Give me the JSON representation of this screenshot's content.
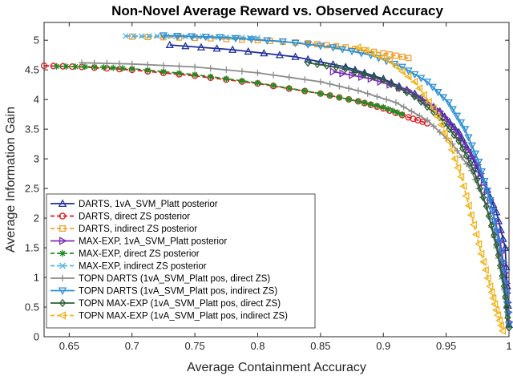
{
  "chart_data": {
    "type": "line",
    "title": "Non-Novel Average Reward vs. Observed Accuracy",
    "xlabel": "Average Containment Accuracy",
    "ylabel": "Average Information Gain",
    "xlim": [
      0.63,
      1.0
    ],
    "ylim": [
      0,
      5.3
    ],
    "xticks": [
      "0.65",
      "0.7",
      "0.75",
      "0.8",
      "0.85",
      "0.9",
      "0.95",
      "1"
    ],
    "yticks": [
      "0",
      "0.5",
      "1",
      "1.5",
      "2",
      "2.5",
      "3",
      "3.5",
      "4",
      "4.5",
      "5"
    ],
    "legend_position": "bottom-left",
    "series": [
      {
        "name": "DARTS, 1vA_SVM_Platt posterior",
        "color": "#1f2e9c",
        "marker": "triangle-up",
        "dash": "solid",
        "x": [
          0.73,
          0.78,
          0.83,
          0.87,
          0.9,
          0.925,
          0.945,
          0.96,
          0.97,
          0.98,
          0.99,
          0.997,
          1.0
        ],
        "y": [
          4.92,
          4.84,
          4.72,
          4.55,
          4.35,
          4.1,
          3.8,
          3.45,
          3.05,
          2.6,
          2.1,
          1.5,
          0.2
        ]
      },
      {
        "name": "DARTS, direct ZS posterior",
        "color": "#e0191b",
        "marker": "circle",
        "dash": "dashed",
        "x": [
          0.63,
          0.66,
          0.7,
          0.75,
          0.8,
          0.85,
          0.88,
          0.9,
          0.92,
          0.935
        ],
        "y": [
          4.57,
          4.55,
          4.5,
          4.4,
          4.27,
          4.1,
          3.97,
          3.85,
          3.7,
          3.6
        ]
      },
      {
        "name": "DARTS, indirect ZS posterior",
        "color": "#f0a030",
        "marker": "square",
        "dash": "dashed",
        "x": [
          0.7,
          0.75,
          0.8,
          0.84,
          0.87,
          0.9,
          0.92
        ],
        "y": [
          5.06,
          5.04,
          5.0,
          4.95,
          4.88,
          4.78,
          4.7
        ]
      },
      {
        "name": "MAX-EXP, 1vA_SVM_Platt posterior",
        "color": "#7a2fb0",
        "marker": "triangle-right",
        "dash": "solid",
        "x": [
          0.86,
          0.89,
          0.92,
          0.945,
          0.96,
          0.975,
          0.985,
          0.993,
          0.998,
          1.0
        ],
        "y": [
          4.47,
          4.35,
          4.15,
          3.8,
          3.4,
          2.9,
          2.3,
          1.6,
          0.9,
          0.25
        ]
      },
      {
        "name": "MAX-EXP, direct ZS posterior",
        "color": "#1e8c22",
        "marker": "asterisk",
        "dash": "dashed",
        "x": [
          0.64,
          0.67,
          0.7,
          0.75,
          0.8,
          0.85,
          0.88,
          0.9,
          0.915
        ],
        "y": [
          4.56,
          4.55,
          4.52,
          4.42,
          4.28,
          4.1,
          3.97,
          3.87,
          3.75
        ]
      },
      {
        "name": "MAX-EXP, indirect ZS posterior",
        "color": "#4fb3e8",
        "marker": "cross",
        "dash": "dashed",
        "x": [
          0.695,
          0.72,
          0.75,
          0.775,
          0.8
        ],
        "y": [
          5.07,
          5.07,
          5.06,
          5.05,
          5.04
        ]
      },
      {
        "name": "TOPN DARTS (1vA_SVM_Platt pos, direct ZS)",
        "color": "#8c8c8c",
        "marker": "plus",
        "dash": "solid",
        "x": [
          0.66,
          0.7,
          0.75,
          0.8,
          0.85,
          0.88,
          0.91,
          0.935,
          0.955,
          0.97,
          0.982,
          0.99,
          0.996,
          1.0
        ],
        "y": [
          4.62,
          4.6,
          4.55,
          4.45,
          4.3,
          4.15,
          3.95,
          3.65,
          3.25,
          2.8,
          2.2,
          1.5,
          0.8,
          0.15
        ]
      },
      {
        "name": "TOPN DARTS (1vA_SVM_Platt pos, indirect ZS)",
        "color": "#2a8fd6",
        "marker": "triangle-down",
        "dash": "solid",
        "x": [
          0.725,
          0.77,
          0.82,
          0.86,
          0.89,
          0.915,
          0.935,
          0.952,
          0.965,
          0.976,
          0.985,
          0.992,
          0.997,
          1.0
        ],
        "y": [
          5.08,
          5.05,
          4.98,
          4.88,
          4.75,
          4.55,
          4.3,
          3.95,
          3.5,
          2.95,
          2.3,
          1.6,
          0.9,
          0.2
        ]
      },
      {
        "name": "TOPN MAX-EXP (1vA_SVM_Platt pos, direct ZS)",
        "color": "#2e5e38",
        "marker": "diamond",
        "dash": "solid",
        "x": [
          0.84,
          0.87,
          0.9,
          0.925,
          0.945,
          0.96,
          0.972,
          0.982,
          0.99,
          0.996,
          1.0
        ],
        "y": [
          4.62,
          4.52,
          4.33,
          4.05,
          3.7,
          3.3,
          2.8,
          2.2,
          1.55,
          0.85,
          0.15
        ]
      },
      {
        "name": "TOPN MAX-EXP (1vA_SVM_Platt pos, indirect ZS)",
        "color": "#f2b21a",
        "marker": "triangle-left",
        "dash": "dashed",
        "x": [
          0.88,
          0.905,
          0.925,
          0.94,
          0.952,
          0.962,
          0.97,
          0.978,
          0.985,
          0.99,
          0.995
        ],
        "y": [
          4.88,
          4.65,
          4.3,
          3.85,
          3.3,
          2.7,
          2.05,
          1.4,
          0.85,
          0.45,
          0.1
        ]
      }
    ]
  }
}
